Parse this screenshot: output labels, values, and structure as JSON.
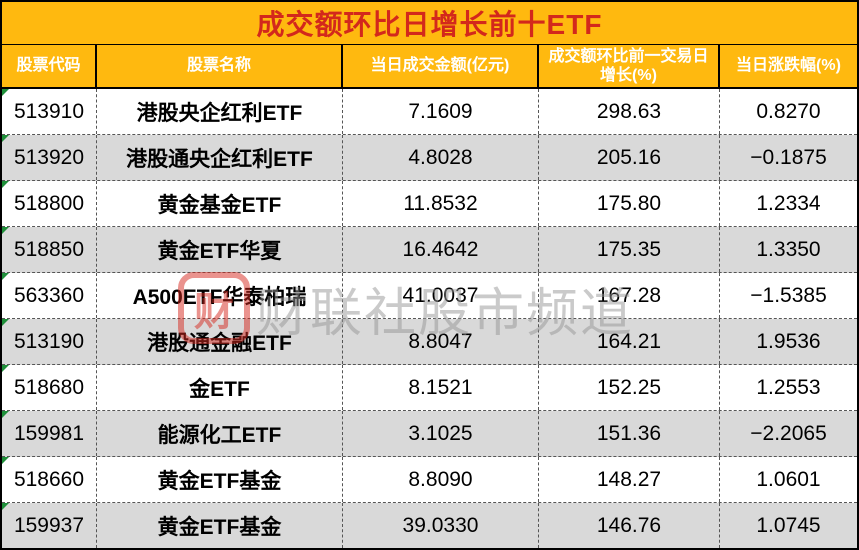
{
  "title": "成交额环比日增长前十ETF",
  "colors": {
    "banner_orange": "#FFB90F",
    "title_red": "#D3281C",
    "header_text": "#FFFFFF",
    "row_stripe_gray": "#D9D9D9",
    "grid_line": "#555555",
    "error_flag_green": "#1F8F3A"
  },
  "watermark": {
    "logo_glyph": "财",
    "text": "财联社股市频道"
  },
  "chart_data": {
    "type": "table",
    "title": "成交额环比日增长前十ETF",
    "columns": [
      "股票代码",
      "股票名称",
      "当日成交金额(亿元)",
      "成交额环比前一交易日增长(%)",
      "当日涨跌幅(%)"
    ],
    "rows": [
      [
        "513910",
        "港股央企红利ETF",
        "7.1609",
        "298.63",
        "0.8270"
      ],
      [
        "513920",
        "港股通央企红利ETF",
        "4.8028",
        "205.16",
        "−0.1875"
      ],
      [
        "518800",
        "黄金基金ETF",
        "11.8532",
        "175.80",
        "1.2334"
      ],
      [
        "518850",
        "黄金ETF华夏",
        "16.4642",
        "175.35",
        "1.3350"
      ],
      [
        "563360",
        "A500ETF华泰柏瑞",
        "41.0037",
        "167.28",
        "−1.5385"
      ],
      [
        "513190",
        "港股通金融ETF",
        "8.8047",
        "164.21",
        "1.9536"
      ],
      [
        "518680",
        "金ETF",
        "8.1521",
        "152.25",
        "1.2553"
      ],
      [
        "159981",
        "能源化工ETF",
        "3.1025",
        "151.36",
        "−2.2065"
      ],
      [
        "518660",
        "黄金ETF基金",
        "8.8090",
        "148.27",
        "1.0601"
      ],
      [
        "159937",
        "黄金ETF基金",
        "39.0330",
        "146.76",
        "1.0745"
      ]
    ]
  }
}
